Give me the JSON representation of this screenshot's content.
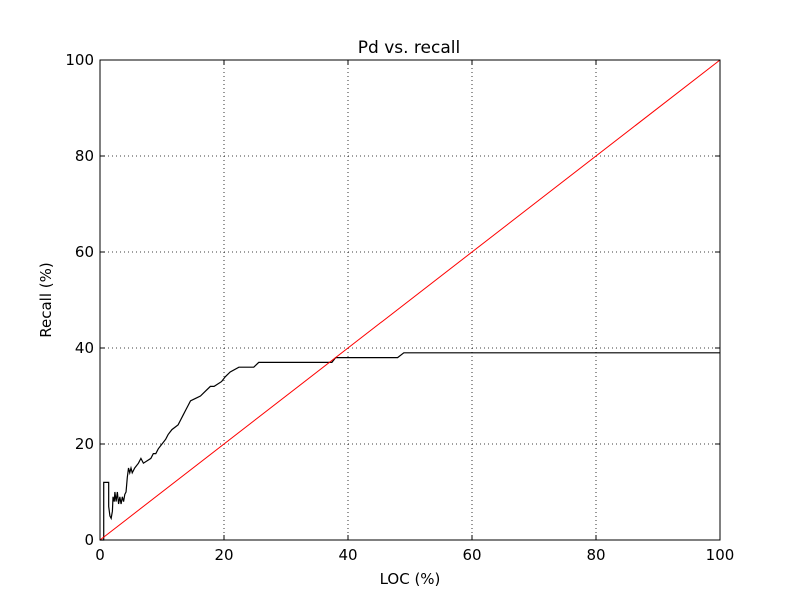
{
  "chart_data": {
    "type": "line",
    "title": "Pd vs. recall",
    "xlabel": "LOC (%)",
    "ylabel": "Recall (%)",
    "xlim": [
      0,
      100
    ],
    "ylim": [
      0,
      100
    ],
    "xticks": [
      0,
      20,
      40,
      60,
      80,
      100
    ],
    "yticks": [
      0,
      20,
      40,
      60,
      80,
      100
    ],
    "xtick_labels": [
      "0",
      "20",
      "40",
      "60",
      "80",
      "100"
    ],
    "ytick_labels": [
      "0",
      "20",
      "40",
      "60",
      "80",
      "100"
    ],
    "grid": true,
    "series": [
      {
        "color": "#000000",
        "x": [
          0,
          0.6,
          0.6,
          1.4,
          1.4,
          1.6,
          1.8,
          2.0,
          2.1,
          2.3,
          2.4,
          2.6,
          2.8,
          3.0,
          3.2,
          3.4,
          3.6,
          3.8,
          4.0,
          4.2,
          4.4,
          4.6,
          4.8,
          5.0,
          5.2,
          5.6,
          6.2,
          6.6,
          7.0,
          8.2,
          8.6,
          9.0,
          9.4,
          10.0,
          10.6,
          11.0,
          11.6,
          12.6,
          13.0,
          13.4,
          13.8,
          14.2,
          14.6,
          15.4,
          16.2,
          17.0,
          17.8,
          18.4,
          19.6,
          20.2,
          21.0,
          22.4,
          24.8,
          25.6,
          26.0,
          37.4,
          38.0,
          48.0,
          49.0,
          100
        ],
        "y": [
          0,
          0,
          12,
          12,
          7,
          5,
          4.5,
          6,
          9,
          8,
          10,
          8,
          10,
          7.5,
          9,
          7.5,
          9,
          8,
          9.5,
          10,
          13,
          15,
          14,
          15,
          14,
          15,
          16,
          17,
          16,
          17,
          18,
          18,
          19,
          20,
          21,
          22,
          23,
          24,
          25,
          26,
          27,
          28,
          29,
          29.5,
          30,
          31,
          32,
          32,
          33,
          34,
          35,
          36,
          36,
          37,
          37,
          37,
          38,
          38,
          39,
          39
        ]
      },
      {
        "color": "#ff0000",
        "x": [
          0,
          100
        ],
        "y": [
          0,
          100
        ]
      }
    ]
  }
}
